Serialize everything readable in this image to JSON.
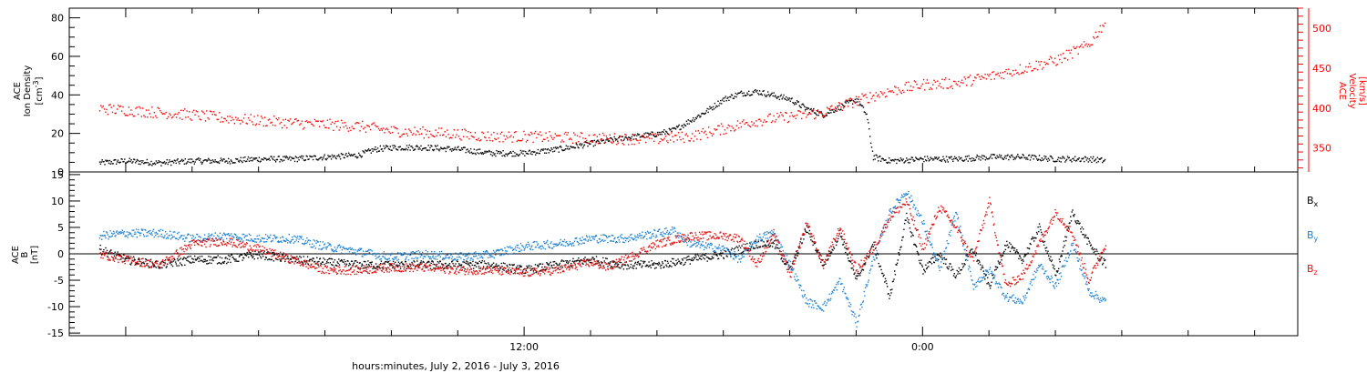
{
  "chart_data": [
    {
      "type": "scatter",
      "panel": "top",
      "ylabel_lines": [
        "ACE",
        "Ion Density"
      ],
      "yunit_main": "[cm",
      "yunit_sup": "-3",
      "yunit_end": "]",
      "y2label_lines": [
        "ACE",
        "Velocity"
      ],
      "y2unit": "[km/s]",
      "ylim": [
        0,
        85
      ],
      "y2lim": [
        320,
        525
      ],
      "yticks": [
        0,
        20,
        40,
        60,
        80
      ],
      "y2ticks": [
        350,
        400,
        450,
        500
      ],
      "colors": {
        "density": "#000000",
        "velocity": "#ff0000"
      },
      "series": [
        {
          "axis": "left",
          "color": "#000000",
          "points": [
            [
              -12.8,
              5
            ],
            [
              -12,
              6
            ],
            [
              -11,
              5
            ],
            [
              -10,
              6
            ],
            [
              -9,
              6
            ],
            [
              -8,
              7
            ],
            [
              -7,
              7
            ],
            [
              -6,
              8
            ],
            [
              -5,
              9
            ],
            [
              -4.5,
              12
            ],
            [
              -4,
              13
            ],
            [
              -3,
              13
            ],
            [
              -2,
              12
            ],
            [
              -1,
              10
            ],
            [
              0,
              10
            ],
            [
              1,
              12
            ],
            [
              2,
              15
            ],
            [
              3,
              18
            ],
            [
              4,
              20
            ],
            [
              4.5,
              22
            ],
            [
              5,
              27
            ],
            [
              5.5,
              32
            ],
            [
              6,
              38
            ],
            [
              6.5,
              41
            ],
            [
              7,
              42
            ],
            [
              7.5,
              40
            ],
            [
              8,
              38
            ],
            [
              8.5,
              33
            ],
            [
              9,
              30
            ],
            [
              9.5,
              34
            ],
            [
              10,
              38
            ],
            [
              10.3,
              30
            ],
            [
              10.5,
              8
            ],
            [
              11,
              6
            ],
            [
              12,
              7
            ],
            [
              13,
              7
            ],
            [
              14,
              8
            ],
            [
              15,
              8
            ],
            [
              16,
              7
            ],
            [
              17,
              7
            ],
            [
              17.5,
              6
            ]
          ]
        },
        {
          "axis": "right",
          "color": "#ff0000",
          "points": [
            [
              -12.8,
              400
            ],
            [
              -12,
              398
            ],
            [
              -11,
              395
            ],
            [
              -10,
              392
            ],
            [
              -9,
              388
            ],
            [
              -8,
              385
            ],
            [
              -7,
              382
            ],
            [
              -6,
              380
            ],
            [
              -5,
              378
            ],
            [
              -4,
              372
            ],
            [
              -3,
              370
            ],
            [
              -2,
              368
            ],
            [
              -1,
              365
            ],
            [
              0,
              365
            ],
            [
              1,
              364
            ],
            [
              2,
              363
            ],
            [
              3,
              362
            ],
            [
              4,
              362
            ],
            [
              5,
              365
            ],
            [
              6,
              375
            ],
            [
              7,
              385
            ],
            [
              8,
              390
            ],
            [
              9,
              395
            ],
            [
              10,
              410
            ],
            [
              11,
              422
            ],
            [
              12,
              430
            ],
            [
              13,
              432
            ],
            [
              14,
              440
            ],
            [
              15,
              450
            ],
            [
              16,
              460
            ],
            [
              17,
              480
            ],
            [
              17.5,
              510
            ]
          ]
        }
      ]
    },
    {
      "type": "scatter",
      "panel": "bottom",
      "ylabel_lines": [
        "ACE",
        "B"
      ],
      "yunit": "[nT]",
      "ylim": [
        -15.5,
        15.5
      ],
      "yticks": [
        -15,
        -10,
        -5,
        0,
        5,
        10,
        15
      ],
      "xticks": [
        {
          "value": 0,
          "label": "12:00"
        },
        {
          "value": 12,
          "label": "0:00"
        }
      ],
      "xlim": [
        -13.7,
        23.3
      ],
      "xlabel": "hours:minutes, July  2, 2016 - July  3, 2016",
      "legend": [
        {
          "name": "B",
          "sub": "x",
          "color": "#000000"
        },
        {
          "name": "B",
          "sub": "y",
          "color": "#1e82d2"
        },
        {
          "name": "B",
          "sub": "z",
          "color": "#e01010"
        }
      ],
      "series": [
        {
          "name": "Bx",
          "color": "#000000",
          "points": [
            [
              -12.8,
              1
            ],
            [
              -12,
              -1
            ],
            [
              -11,
              -2
            ],
            [
              -10,
              -1
            ],
            [
              -9,
              -1
            ],
            [
              -8,
              0
            ],
            [
              -7,
              -1
            ],
            [
              -6,
              -1.5
            ],
            [
              -5,
              -2
            ],
            [
              -4,
              -2
            ],
            [
              -3,
              -2
            ],
            [
              -2,
              -2
            ],
            [
              -1,
              -2
            ],
            [
              0,
              -3
            ],
            [
              1,
              -2
            ],
            [
              2,
              -1
            ],
            [
              3,
              -2
            ],
            [
              4,
              -2
            ],
            [
              5,
              -1
            ],
            [
              6,
              0
            ],
            [
              7,
              2
            ],
            [
              7.5,
              2
            ],
            [
              8,
              -3
            ],
            [
              8.5,
              5
            ],
            [
              9,
              -2
            ],
            [
              9.5,
              4
            ],
            [
              10,
              -5
            ],
            [
              10.5,
              2
            ],
            [
              11,
              -8
            ],
            [
              11.5,
              7
            ],
            [
              12,
              -3
            ],
            [
              12.5,
              0
            ],
            [
              13,
              -4
            ],
            [
              13.5,
              1
            ],
            [
              14,
              -6
            ],
            [
              14.5,
              2
            ],
            [
              15,
              -1
            ],
            [
              15.5,
              5
            ],
            [
              16,
              -4
            ],
            [
              16.5,
              8
            ],
            [
              17,
              2
            ],
            [
              17.5,
              -2
            ]
          ]
        },
        {
          "name": "By",
          "color": "#1e82d2",
          "points": [
            [
              -12.8,
              3.5
            ],
            [
              -12,
              4
            ],
            [
              -11,
              4
            ],
            [
              -10,
              3
            ],
            [
              -9,
              3.5
            ],
            [
              -8,
              3
            ],
            [
              -7,
              3
            ],
            [
              -6,
              1.5
            ],
            [
              -5,
              0.5
            ],
            [
              -4,
              -0.5
            ],
            [
              -3,
              0
            ],
            [
              -2,
              -0.5
            ],
            [
              -1,
              0
            ],
            [
              0,
              1.5
            ],
            [
              1,
              2
            ],
            [
              2,
              3
            ],
            [
              3,
              3
            ],
            [
              4,
              4
            ],
            [
              4.5,
              4.5
            ],
            [
              5,
              2
            ],
            [
              6,
              1
            ],
            [
              6.5,
              -1
            ],
            [
              7,
              3
            ],
            [
              7.5,
              4
            ],
            [
              8,
              -2
            ],
            [
              8.5,
              -9
            ],
            [
              9,
              -10
            ],
            [
              9.5,
              -5
            ],
            [
              10,
              -13
            ],
            [
              10.5,
              -1
            ],
            [
              11,
              8
            ],
            [
              11.5,
              12
            ],
            [
              12,
              6
            ],
            [
              12.5,
              -3
            ],
            [
              13,
              8
            ],
            [
              13.5,
              -6
            ],
            [
              14,
              -3
            ],
            [
              14.5,
              -8
            ],
            [
              15,
              -9
            ],
            [
              15.5,
              -2
            ],
            [
              16,
              -6
            ],
            [
              16.5,
              2
            ],
            [
              17,
              -7
            ],
            [
              17.5,
              -9
            ]
          ]
        },
        {
          "name": "Bz",
          "color": "#e01010",
          "points": [
            [
              -12.8,
              0
            ],
            [
              -12,
              -1
            ],
            [
              -11,
              -2
            ],
            [
              -10,
              2
            ],
            [
              -9,
              2.5
            ],
            [
              -8,
              1
            ],
            [
              -7,
              -1
            ],
            [
              -6,
              -3
            ],
            [
              -5,
              -3
            ],
            [
              -4,
              -2.5
            ],
            [
              -3,
              -2.5
            ],
            [
              -2,
              -3
            ],
            [
              -1,
              -3
            ],
            [
              0,
              -3.5
            ],
            [
              1,
              -3
            ],
            [
              2,
              -1.5
            ],
            [
              2.5,
              -2.5
            ],
            [
              3,
              -1
            ],
            [
              4,
              2
            ],
            [
              5,
              3.5
            ],
            [
              6,
              3.5
            ],
            [
              6.5,
              3
            ],
            [
              7,
              -2
            ],
            [
              7.5,
              4
            ],
            [
              8,
              -4
            ],
            [
              8.5,
              6
            ],
            [
              9,
              -2
            ],
            [
              9.5,
              5
            ],
            [
              10,
              -3
            ],
            [
              10.5,
              1
            ],
            [
              11,
              7
            ],
            [
              11.5,
              10
            ],
            [
              12,
              1
            ],
            [
              12.5,
              9
            ],
            [
              13,
              5
            ],
            [
              13.5,
              -1
            ],
            [
              14,
              10
            ],
            [
              14.5,
              -6
            ],
            [
              15,
              -4
            ],
            [
              15.5,
              2
            ],
            [
              16,
              8
            ],
            [
              16.5,
              4
            ],
            [
              17,
              -5
            ],
            [
              17.5,
              2
            ]
          ]
        }
      ]
    }
  ]
}
